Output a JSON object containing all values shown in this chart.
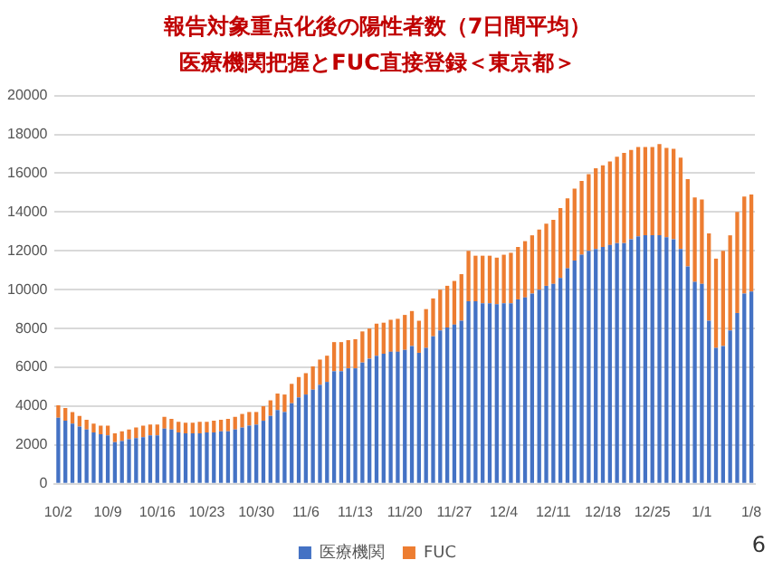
{
  "chart_data": {
    "type": "bar",
    "stacked": true,
    "title": "報告対象重点化後の陽性者数（7日間平均）",
    "subtitle": "医療機関把握とFUC直接登録＜東京都＞",
    "categories": [
      "10/2",
      null,
      null,
      null,
      null,
      null,
      null,
      "10/9",
      null,
      null,
      null,
      null,
      null,
      null,
      "10/16",
      null,
      null,
      null,
      null,
      null,
      null,
      "10/23",
      null,
      null,
      null,
      null,
      null,
      null,
      "10/30",
      null,
      null,
      null,
      null,
      null,
      null,
      "11/6",
      null,
      null,
      null,
      null,
      null,
      null,
      "11/13",
      null,
      null,
      null,
      null,
      null,
      null,
      "11/20",
      null,
      null,
      null,
      null,
      null,
      null,
      "11/27",
      null,
      null,
      null,
      null,
      null,
      null,
      "12/4",
      null,
      null,
      null,
      null,
      null,
      null,
      "12/11",
      null,
      null,
      null,
      null,
      null,
      null,
      "12/18",
      null,
      null,
      null,
      null,
      null,
      null,
      "12/25",
      null,
      null,
      null,
      null,
      null,
      null,
      "1/1",
      null,
      null,
      null,
      null,
      null,
      null,
      "1/8"
    ],
    "series": [
      {
        "name": "医療機関",
        "color": "#4472c4",
        "values": [
          3400,
          3250,
          3100,
          2950,
          2800,
          2650,
          2550,
          2500,
          2150,
          2200,
          2300,
          2350,
          2400,
          2500,
          2500,
          2850,
          2800,
          2650,
          2600,
          2600,
          2600,
          2650,
          2650,
          2700,
          2700,
          2800,
          2900,
          3000,
          3050,
          3250,
          3500,
          3800,
          3700,
          4150,
          4450,
          4600,
          4850,
          5100,
          5250,
          5800,
          5800,
          5950,
          5950,
          6250,
          6450,
          6600,
          6700,
          6800,
          6800,
          6900,
          7100,
          6750,
          7000,
          7600,
          7900,
          8050,
          8200,
          8400,
          9400,
          9400,
          9300,
          9300,
          9250,
          9300,
          9300,
          9500,
          9600,
          9800,
          10000,
          10200,
          10300,
          10600,
          11100,
          11500,
          11800,
          12000,
          12100,
          12200,
          12300,
          12400,
          12400,
          12600,
          12750,
          12800,
          12800,
          12800,
          12700,
          12600,
          12100,
          11200,
          10400,
          10300,
          8400,
          7000,
          7100,
          7900,
          8800,
          9800,
          9900
        ]
      },
      {
        "name": "FUC",
        "color": "#ed7d31",
        "values": [
          650,
          650,
          600,
          550,
          500,
          450,
          450,
          500,
          450,
          500,
          500,
          550,
          600,
          550,
          550,
          600,
          550,
          550,
          550,
          550,
          600,
          550,
          600,
          600,
          650,
          650,
          700,
          700,
          650,
          750,
          800,
          850,
          900,
          1000,
          1050,
          1100,
          1200,
          1300,
          1350,
          1500,
          1500,
          1450,
          1500,
          1600,
          1550,
          1650,
          1600,
          1650,
          1700,
          1800,
          1800,
          1650,
          2000,
          1950,
          2100,
          2150,
          2250,
          2400,
          2600,
          2350,
          2450,
          2450,
          2400,
          2500,
          2600,
          2700,
          2900,
          3000,
          3100,
          3200,
          3300,
          3600,
          3600,
          3700,
          3800,
          3950,
          4150,
          4200,
          4300,
          4450,
          4650,
          4600,
          4600,
          4550,
          4550,
          4700,
          4600,
          4650,
          4700,
          4500,
          4350,
          4350,
          4500,
          4600,
          4900,
          4900,
          5200,
          5000,
          5000
        ]
      }
    ],
    "ylim": [
      0,
      20000
    ],
    "yticks": [
      0,
      2000,
      4000,
      6000,
      8000,
      10000,
      12000,
      14000,
      16000,
      18000,
      20000
    ],
    "grid": "y",
    "legend": "bottom",
    "annotations": [
      "6"
    ]
  }
}
